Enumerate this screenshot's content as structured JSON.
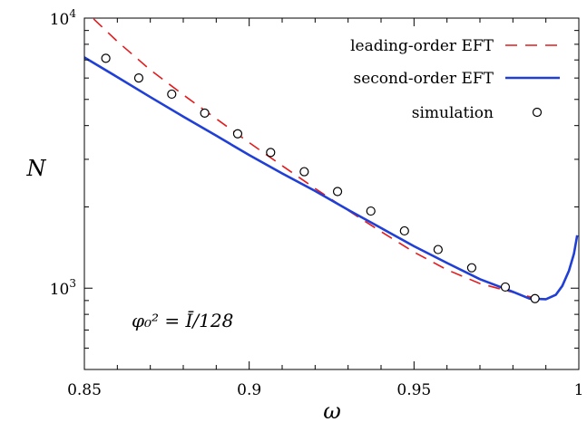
{
  "chart_data": {
    "type": "line",
    "xlabel": "ω",
    "ylabel": "N",
    "xlim": [
      0.85,
      1.0
    ],
    "ylim": [
      500,
      10000
    ],
    "yscale": "log",
    "grid": false,
    "legend_position": "top-right",
    "x_ticks": [
      {
        "value": 0.85,
        "label": "0.85"
      },
      {
        "value": 0.9,
        "label": "0.9"
      },
      {
        "value": 0.95,
        "label": "0.95"
      },
      {
        "value": 1.0,
        "label": "1"
      }
    ],
    "y_ticks": [
      {
        "value": 1000,
        "base": "10",
        "exp": "3"
      },
      {
        "value": 10000,
        "base": "10",
        "exp": "4"
      }
    ],
    "y_minor_ticks": [
      500,
      600,
      700,
      800,
      900,
      2000,
      3000,
      4000,
      5000,
      6000,
      7000,
      8000,
      9000
    ],
    "x_minor_ticks": [
      0.86,
      0.87,
      0.88,
      0.89,
      0.91,
      0.92,
      0.93,
      0.94,
      0.96,
      0.97,
      0.98,
      0.99
    ],
    "annotation": "φ₀² = Ī/128",
    "series": [
      {
        "name": "leading-order EFT",
        "style": "dashed",
        "color": "#e41a1c",
        "x": [
          0.8528,
          0.86,
          0.87,
          0.88,
          0.89,
          0.9,
          0.91,
          0.92,
          0.93,
          0.94,
          0.95,
          0.96,
          0.97,
          0.98,
          0.9865
        ],
        "y": [
          9930,
          8200,
          6430,
          5200,
          4240,
          3460,
          2840,
          2340,
          1940,
          1620,
          1360,
          1170,
          1040,
          965,
          920
        ]
      },
      {
        "name": "second-order EFT",
        "style": "solid",
        "color": "#1f3fd6",
        "x": [
          0.85,
          0.86,
          0.87,
          0.88,
          0.89,
          0.9,
          0.91,
          0.92,
          0.93,
          0.94,
          0.95,
          0.96,
          0.97,
          0.98,
          0.985,
          0.99,
          0.993,
          0.995,
          0.997,
          0.9985,
          0.9995
        ],
        "y": [
          7150,
          6050,
          5100,
          4320,
          3670,
          3110,
          2660,
          2290,
          1950,
          1670,
          1430,
          1240,
          1080,
          970,
          915,
          910,
          945,
          1020,
          1160,
          1340,
          1570
        ]
      },
      {
        "name": "simulation",
        "style": "markers",
        "color": "#000000",
        "x": [
          0.8565,
          0.8665,
          0.8765,
          0.8865,
          0.8965,
          0.9065,
          0.9167,
          0.9268,
          0.9369,
          0.9471,
          0.9573,
          0.9675,
          0.9777,
          0.9867
        ],
        "y": [
          7100,
          6000,
          5230,
          4450,
          3730,
          3180,
          2700,
          2280,
          1930,
          1630,
          1390,
          1190,
          1010,
          915
        ]
      }
    ]
  }
}
